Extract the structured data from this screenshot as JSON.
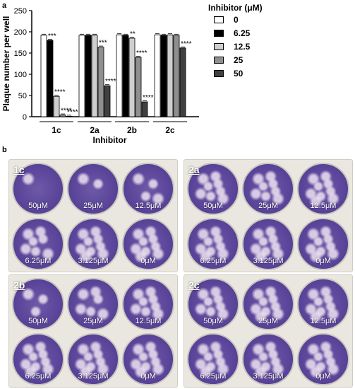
{
  "panel_a_label": "a",
  "panel_b_label": "b",
  "legend": {
    "title": "Inhibitor (μM)",
    "items": [
      {
        "label": "0",
        "color": "#ffffff"
      },
      {
        "label": "6.25",
        "color": "#000000"
      },
      {
        "label": "12.5",
        "color": "#cfcfcf"
      },
      {
        "label": "25",
        "color": "#8f8f8f"
      },
      {
        "label": "50",
        "color": "#404040"
      }
    ]
  },
  "chart_data": {
    "type": "bar",
    "title": "",
    "xlabel": "Inhibitor",
    "ylabel": "Plaque number per well",
    "categories": [
      "1c",
      "2a",
      "2b",
      "2c"
    ],
    "ylim": [
      0,
      250
    ],
    "yticks": [
      0,
      50,
      100,
      150,
      200,
      250
    ],
    "series": [
      {
        "name": "0",
        "values": [
          192,
          192,
          193,
          193
        ]
      },
      {
        "name": "6.25",
        "values": [
          180,
          192,
          192,
          192
        ]
      },
      {
        "name": "12.5",
        "values": [
          48,
          192,
          185,
          193
        ]
      },
      {
        "name": "25",
        "values": [
          4,
          164,
          140,
          192
        ]
      },
      {
        "name": "50",
        "values": [
          0,
          73,
          35,
          162
        ]
      }
    ],
    "significance": [
      [
        "",
        "***",
        "****",
        "****",
        "****"
      ],
      [
        "",
        "",
        "",
        "***",
        "****"
      ],
      [
        "",
        "",
        "**",
        "****",
        "****"
      ],
      [
        "",
        "",
        "",
        "",
        "****"
      ]
    ]
  },
  "plates": [
    {
      "tag": "1c",
      "wells": [
        "50μM",
        "25μM",
        "12.5μM",
        "6.25μM",
        "3.125μM",
        "0μM"
      ]
    },
    {
      "tag": "2a",
      "wells": [
        "50μM",
        "25μM",
        "12.5μM",
        "6.25μM",
        "3.125μM",
        "0μM"
      ]
    },
    {
      "tag": "2b",
      "wells": [
        "50μM",
        "25μM",
        "12.5μM",
        "6.25μM",
        "3.125μM",
        "0μM"
      ]
    },
    {
      "tag": "2c",
      "wells": [
        "50μM",
        "25μM",
        "12.5μM",
        "6.25μM",
        "3.125μM",
        "0μM"
      ]
    }
  ]
}
